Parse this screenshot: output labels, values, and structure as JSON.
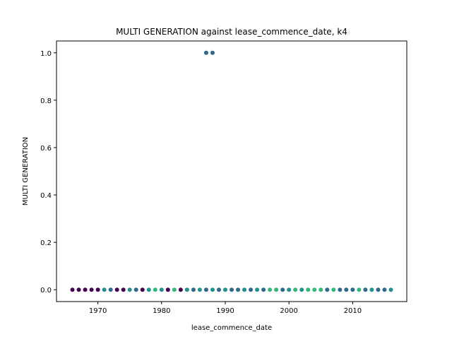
{
  "chart_data": {
    "type": "scatter",
    "title": "MULTI GENERATION against lease_commence_date, k4",
    "xlabel": "lease_commence_date",
    "ylabel": "MULTI GENERATION",
    "xlim": [
      1963.5,
      2018.5
    ],
    "ylim": [
      -0.05,
      1.05
    ],
    "xticks": [
      1970,
      1980,
      1990,
      2000,
      2010
    ],
    "yticks": [
      0.0,
      0.2,
      0.4,
      0.6,
      0.8,
      1.0
    ],
    "xtick_labels": [
      "1970",
      "1980",
      "1990",
      "2000",
      "2010"
    ],
    "ytick_labels": [
      "0.0",
      "0.2",
      "0.4",
      "0.6",
      "0.8",
      "1.0"
    ],
    "grid": false,
    "colors": {
      "purple": "#440154",
      "blue": "#31688e",
      "teal": "#21918c",
      "green": "#35b779"
    },
    "points": [
      {
        "x": 1966,
        "y": 0,
        "c": "purple"
      },
      {
        "x": 1967,
        "y": 0,
        "c": "purple"
      },
      {
        "x": 1968,
        "y": 0,
        "c": "purple"
      },
      {
        "x": 1969,
        "y": 0,
        "c": "purple"
      },
      {
        "x": 1970,
        "y": 0,
        "c": "purple"
      },
      {
        "x": 1971,
        "y": 0,
        "c": "teal"
      },
      {
        "x": 1972,
        "y": 0,
        "c": "blue"
      },
      {
        "x": 1973,
        "y": 0,
        "c": "purple"
      },
      {
        "x": 1974,
        "y": 0,
        "c": "purple"
      },
      {
        "x": 1975,
        "y": 0,
        "c": "teal"
      },
      {
        "x": 1976,
        "y": 0,
        "c": "blue"
      },
      {
        "x": 1977,
        "y": 0,
        "c": "purple"
      },
      {
        "x": 1978,
        "y": 0,
        "c": "teal"
      },
      {
        "x": 1979,
        "y": 0,
        "c": "green"
      },
      {
        "x": 1980,
        "y": 0,
        "c": "teal"
      },
      {
        "x": 1981,
        "y": 0,
        "c": "purple"
      },
      {
        "x": 1982,
        "y": 0,
        "c": "green"
      },
      {
        "x": 1983,
        "y": 0,
        "c": "purple"
      },
      {
        "x": 1984,
        "y": 0,
        "c": "teal"
      },
      {
        "x": 1985,
        "y": 0,
        "c": "blue"
      },
      {
        "x": 1986,
        "y": 0,
        "c": "teal"
      },
      {
        "x": 1987,
        "y": 0,
        "c": "blue"
      },
      {
        "x": 1988,
        "y": 0,
        "c": "teal"
      },
      {
        "x": 1989,
        "y": 0,
        "c": "blue"
      },
      {
        "x": 1990,
        "y": 0,
        "c": "teal"
      },
      {
        "x": 1991,
        "y": 0,
        "c": "blue"
      },
      {
        "x": 1992,
        "y": 0,
        "c": "blue"
      },
      {
        "x": 1993,
        "y": 0,
        "c": "teal"
      },
      {
        "x": 1994,
        "y": 0,
        "c": "blue"
      },
      {
        "x": 1995,
        "y": 0,
        "c": "teal"
      },
      {
        "x": 1996,
        "y": 0,
        "c": "blue"
      },
      {
        "x": 1997,
        "y": 0,
        "c": "green"
      },
      {
        "x": 1998,
        "y": 0,
        "c": "green"
      },
      {
        "x": 1999,
        "y": 0,
        "c": "blue"
      },
      {
        "x": 2000,
        "y": 0,
        "c": "teal"
      },
      {
        "x": 2001,
        "y": 0,
        "c": "green"
      },
      {
        "x": 2002,
        "y": 0,
        "c": "teal"
      },
      {
        "x": 2003,
        "y": 0,
        "c": "green"
      },
      {
        "x": 2004,
        "y": 0,
        "c": "green"
      },
      {
        "x": 2005,
        "y": 0,
        "c": "green"
      },
      {
        "x": 2006,
        "y": 0,
        "c": "blue"
      },
      {
        "x": 2007,
        "y": 0,
        "c": "green"
      },
      {
        "x": 2008,
        "y": 0,
        "c": "blue"
      },
      {
        "x": 2009,
        "y": 0,
        "c": "blue"
      },
      {
        "x": 2010,
        "y": 0,
        "c": "blue"
      },
      {
        "x": 2011,
        "y": 0,
        "c": "green"
      },
      {
        "x": 2012,
        "y": 0,
        "c": "blue"
      },
      {
        "x": 2013,
        "y": 0,
        "c": "teal"
      },
      {
        "x": 2014,
        "y": 0,
        "c": "blue"
      },
      {
        "x": 2015,
        "y": 0,
        "c": "blue"
      },
      {
        "x": 2016,
        "y": 0,
        "c": "teal"
      },
      {
        "x": 1987,
        "y": 1,
        "c": "blue"
      },
      {
        "x": 1988,
        "y": 1,
        "c": "blue"
      }
    ]
  }
}
